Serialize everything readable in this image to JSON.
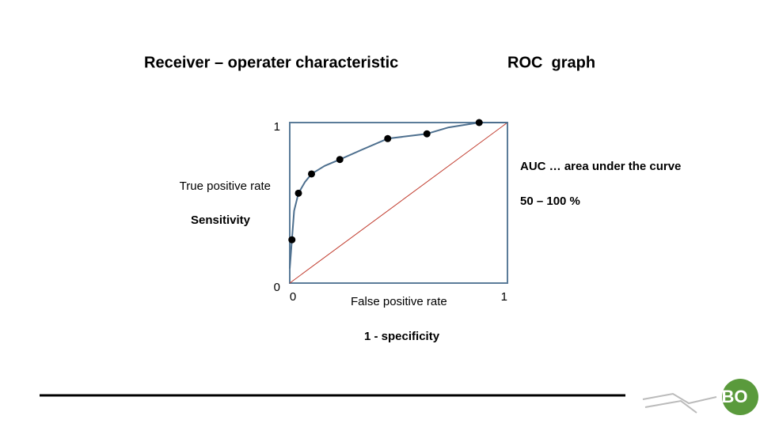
{
  "chart_data": {
    "type": "scatter",
    "title": "Receiver – operater characteristic",
    "subtitle": "ROC  graph",
    "y_label": "True positive rate",
    "y_label_2": "Sensitivity",
    "x_label": "False positive rate",
    "x_label_2": "1 - specificity",
    "annotations": [
      "AUC … area under the curve",
      "50 – 100 %"
    ],
    "xlim": [
      0,
      1
    ],
    "ylim": [
      0,
      1
    ],
    "xticks": [
      0,
      1
    ],
    "yticks": [
      0,
      1
    ],
    "frame_color": "#5b7c99",
    "diagonal_color": "#c0392b",
    "curve": {
      "color": "#4d6f8e",
      "x": [
        0,
        0.01,
        0.02,
        0.04,
        0.07,
        0.1,
        0.16,
        0.23,
        0.33,
        0.45,
        0.63,
        0.73,
        0.87,
        1
      ],
      "y": [
        0.09,
        0.27,
        0.45,
        0.56,
        0.63,
        0.68,
        0.73,
        0.77,
        0.83,
        0.9,
        0.93,
        0.97,
        1.0,
        1.0
      ]
    },
    "points": {
      "color": "#000000",
      "x": [
        0.01,
        0.04,
        0.1,
        0.23,
        0.45,
        0.63,
        0.87
      ],
      "y": [
        0.27,
        0.56,
        0.68,
        0.77,
        0.9,
        0.93,
        1.0
      ]
    }
  },
  "logo_text": "BO"
}
